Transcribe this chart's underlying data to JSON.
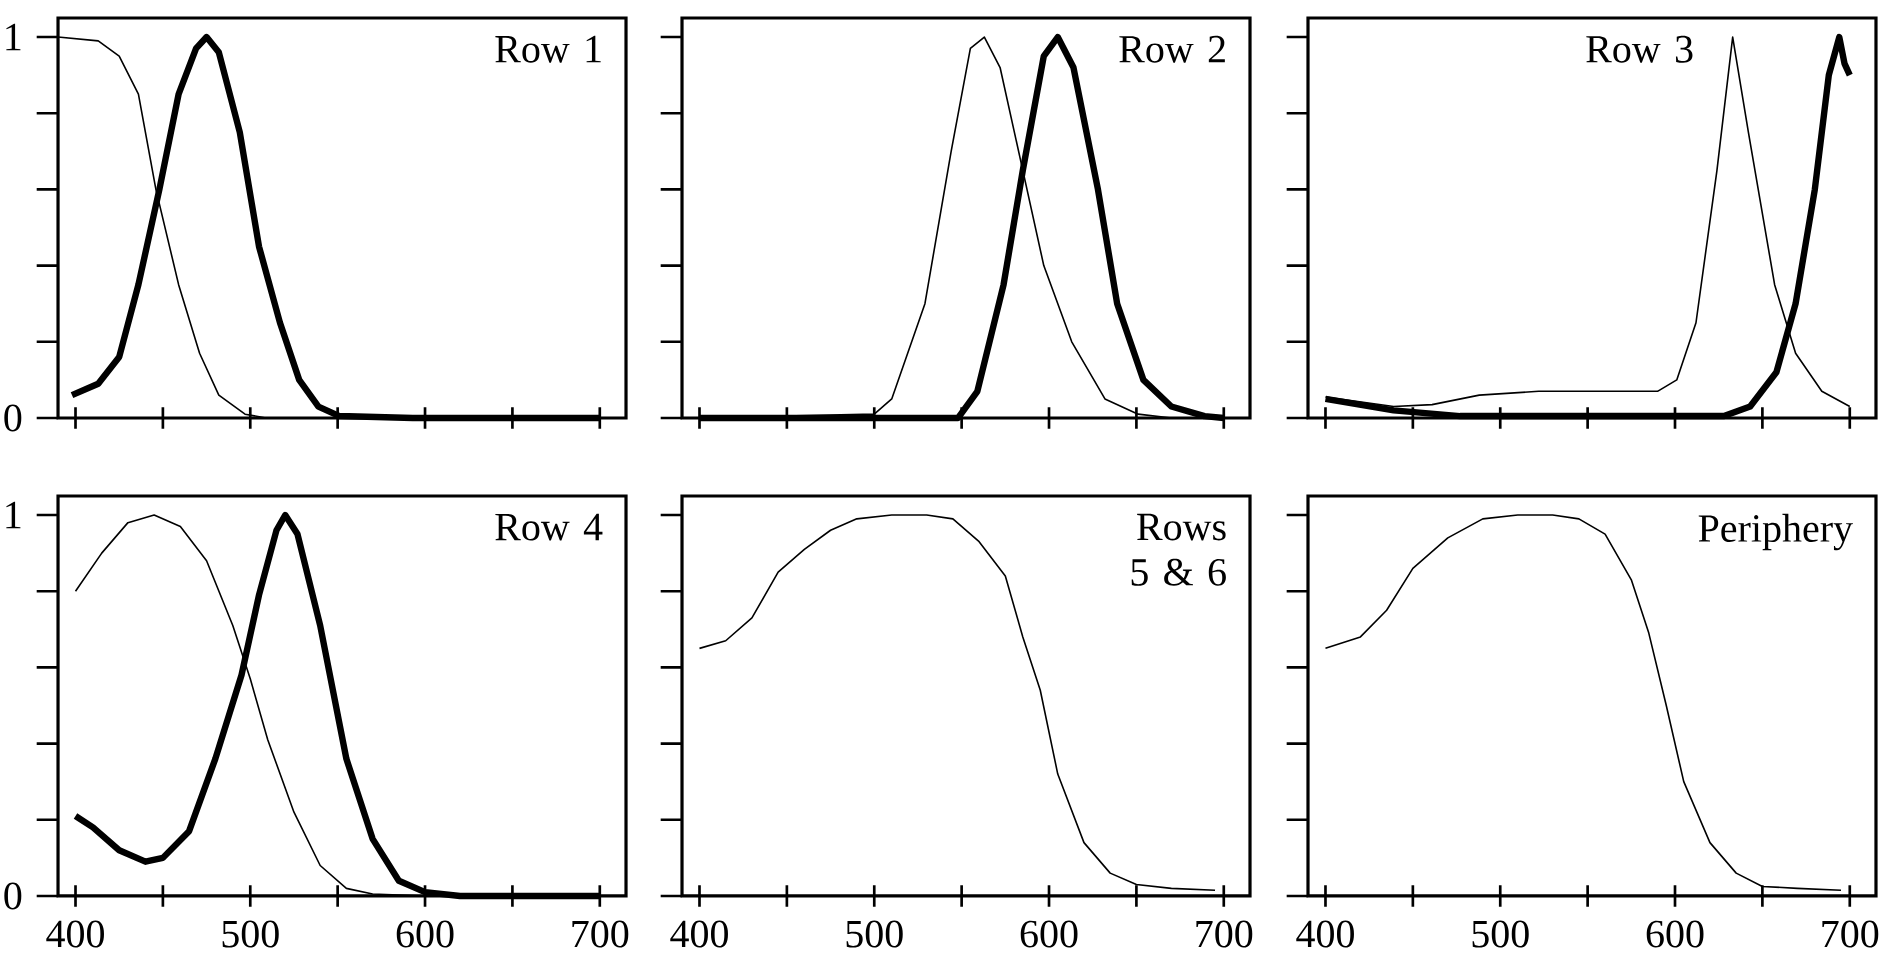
{
  "chart_data": [
    {
      "type": "line",
      "annotations": [
        "Row 1"
      ],
      "xlim": [
        390,
        715
      ],
      "ylim": [
        0,
        1.05
      ],
      "tick_labels": "y",
      "xticks": [
        {
          "value": 400,
          "label": null
        },
        {
          "value": 450,
          "label": null
        },
        {
          "value": 500,
          "label": null
        },
        {
          "value": 550,
          "label": null
        },
        {
          "value": 600,
          "label": null
        },
        {
          "value": 650,
          "label": null
        },
        {
          "value": 700,
          "label": null
        }
      ],
      "yticks": [
        0,
        {
          "value": 0.2,
          "label": null
        },
        {
          "value": 0.4,
          "label": null
        },
        {
          "value": 0.6,
          "label": null
        },
        {
          "value": 0.8,
          "label": null
        },
        1
      ],
      "series": [
        {
          "color": "#000000",
          "x": [
            390,
            413,
            425,
            436,
            446,
            459,
            471,
            482,
            497,
            509,
            600,
            700
          ],
          "values": [
            1.0,
            0.99,
            0.95,
            0.85,
            0.6,
            0.35,
            0.17,
            0.06,
            0.01,
            0,
            0,
            0
          ]
        },
        {
          "color": "#000000",
          "x": [
            398,
            413,
            425,
            436,
            448,
            459,
            469,
            475,
            482,
            494,
            505,
            517,
            528,
            539,
            551,
            593,
            700
          ],
          "values": [
            0.06,
            0.09,
            0.16,
            0.35,
            0.6,
            0.85,
            0.97,
            1.0,
            0.96,
            0.75,
            0.45,
            0.25,
            0.1,
            0.03,
            0.005,
            0,
            0
          ]
        }
      ]
    },
    {
      "type": "line",
      "annotations": [
        "Row 2"
      ],
      "xlim": [
        390,
        715
      ],
      "ylim": [
        0,
        1.05
      ],
      "tick_labels": false,
      "xticks": [
        {
          "value": 400,
          "label": null
        },
        {
          "value": 450,
          "label": null
        },
        {
          "value": 500,
          "label": null
        },
        {
          "value": 550,
          "label": null
        },
        {
          "value": 600,
          "label": null
        },
        {
          "value": 650,
          "label": null
        },
        {
          "value": 700,
          "label": null
        }
      ],
      "yticks": [
        {
          "value": 0,
          "label": null
        },
        {
          "value": 0.2,
          "label": null
        },
        {
          "value": 0.4,
          "label": null
        },
        {
          "value": 0.6,
          "label": null
        },
        {
          "value": 0.8,
          "label": null
        },
        {
          "value": 1,
          "label": null
        }
      ],
      "series": [
        {
          "color": "#000000",
          "x": [
            400,
            500,
            510,
            529,
            544,
            555,
            563,
            572,
            585,
            597,
            613,
            632,
            651,
            670,
            700
          ],
          "values": [
            0,
            0.01,
            0.05,
            0.3,
            0.7,
            0.97,
            1.0,
            0.92,
            0.65,
            0.4,
            0.2,
            0.05,
            0.01,
            0,
            0
          ]
        },
        {
          "color": "#000000",
          "x": [
            400,
            548,
            559,
            574,
            585,
            597,
            605,
            614,
            628,
            639,
            654,
            670,
            689,
            700
          ],
          "values": [
            0,
            0,
            0.07,
            0.35,
            0.65,
            0.95,
            1.0,
            0.92,
            0.6,
            0.3,
            0.1,
            0.03,
            0.005,
            0
          ]
        }
      ]
    },
    {
      "type": "line",
      "annotations": [
        "Row 3"
      ],
      "xlim": [
        390,
        715
      ],
      "ylim": [
        0,
        1.05
      ],
      "tick_labels": false,
      "xticks": [
        {
          "value": 400,
          "label": null
        },
        {
          "value": 450,
          "label": null
        },
        {
          "value": 500,
          "label": null
        },
        {
          "value": 550,
          "label": null
        },
        {
          "value": 600,
          "label": null
        },
        {
          "value": 650,
          "label": null
        },
        {
          "value": 700,
          "label": null
        }
      ],
      "yticks": [
        {
          "value": 0,
          "label": null
        },
        {
          "value": 0.2,
          "label": null
        },
        {
          "value": 0.4,
          "label": null
        },
        {
          "value": 0.6,
          "label": null
        },
        {
          "value": 0.8,
          "label": null
        },
        {
          "value": 1,
          "label": null
        }
      ],
      "series": [
        {
          "color": "#000000",
          "x": [
            400,
            439,
            461,
            488,
            522,
            590,
            601,
            612,
            624,
            633,
            642,
            657,
            669,
            684,
            700
          ],
          "values": [
            0.055,
            0.03,
            0.035,
            0.06,
            0.07,
            0.07,
            0.1,
            0.25,
            0.65,
            1.0,
            0.75,
            0.35,
            0.17,
            0.07,
            0.03
          ]
        },
        {
          "color": "#000000",
          "x": [
            400,
            439,
            477,
            628,
            643,
            658,
            669,
            680,
            688,
            694,
            697,
            700
          ],
          "values": [
            0.05,
            0.02,
            0.005,
            0.005,
            0.03,
            0.12,
            0.3,
            0.6,
            0.9,
            1.0,
            0.93,
            0.9
          ]
        }
      ]
    },
    {
      "type": "line",
      "annotations": [
        "Row 4"
      ],
      "xlim": [
        390,
        715
      ],
      "ylim": [
        0,
        1.05
      ],
      "xticks": [
        400,
        {
          "value": 450,
          "label": null
        },
        500,
        {
          "value": 550,
          "label": null
        },
        600,
        {
          "value": 650,
          "label": null
        },
        700
      ],
      "yticks": [
        0,
        {
          "value": 0.2,
          "label": null
        },
        {
          "value": 0.4,
          "label": null
        },
        {
          "value": 0.6,
          "label": null
        },
        {
          "value": 0.8,
          "label": null
        },
        1
      ],
      "series": [
        {
          "color": "#000000",
          "x": [
            400,
            415,
            430,
            445,
            460,
            475,
            490,
            500,
            510,
            525,
            540,
            555,
            570,
            600,
            700
          ],
          "values": [
            0.8,
            0.9,
            0.98,
            1.0,
            0.97,
            0.88,
            0.71,
            0.57,
            0.41,
            0.22,
            0.08,
            0.02,
            0.005,
            0,
            0
          ]
        },
        {
          "color": "#000000",
          "x": [
            400,
            410,
            425,
            440,
            450,
            465,
            480,
            495,
            505,
            515,
            520,
            527,
            540,
            555,
            570,
            585,
            600,
            620,
            700
          ],
          "values": [
            0.21,
            0.18,
            0.12,
            0.09,
            0.1,
            0.17,
            0.36,
            0.58,
            0.79,
            0.96,
            1.0,
            0.95,
            0.71,
            0.36,
            0.15,
            0.04,
            0.01,
            0,
            0
          ]
        }
      ]
    },
    {
      "type": "line",
      "annotations": [
        "Rows 5 & 6"
      ],
      "xlim": [
        390,
        715
      ],
      "ylim": [
        0,
        1.05
      ],
      "tick_labels": "x",
      "xticks": [
        400,
        {
          "value": 450,
          "label": null
        },
        500,
        {
          "value": 550,
          "label": null
        },
        600,
        {
          "value": 650,
          "label": null
        },
        700
      ],
      "yticks": [
        {
          "value": 0,
          "label": null
        },
        {
          "value": 0.2,
          "label": null
        },
        {
          "value": 0.4,
          "label": null
        },
        {
          "value": 0.6,
          "label": null
        },
        {
          "value": 0.8,
          "label": null
        },
        {
          "value": 1,
          "label": null
        }
      ],
      "series": [
        {
          "color": "#000000",
          "x": [
            400,
            415,
            430,
            445,
            460,
            475,
            490,
            510,
            530,
            545,
            560,
            575,
            585,
            595,
            605,
            620,
            635,
            650,
            670,
            695
          ],
          "values": [
            0.65,
            0.67,
            0.73,
            0.85,
            0.91,
            0.96,
            0.99,
            1.0,
            1.0,
            0.99,
            0.93,
            0.84,
            0.68,
            0.54,
            0.32,
            0.14,
            0.06,
            0.03,
            0.02,
            0.015
          ]
        }
      ]
    },
    {
      "type": "line",
      "annotations": [
        "Periphery"
      ],
      "xlim": [
        390,
        715
      ],
      "ylim": [
        0,
        1.05
      ],
      "tick_labels": "x",
      "xticks": [
        400,
        {
          "value": 450,
          "label": null
        },
        500,
        {
          "value": 550,
          "label": null
        },
        600,
        {
          "value": 650,
          "label": null
        },
        700
      ],
      "yticks": [
        {
          "value": 0,
          "label": null
        },
        {
          "value": 0.2,
          "label": null
        },
        {
          "value": 0.4,
          "label": null
        },
        {
          "value": 0.6,
          "label": null
        },
        {
          "value": 0.8,
          "label": null
        },
        {
          "value": 1,
          "label": null
        }
      ],
      "series": [
        {
          "color": "#000000",
          "x": [
            400,
            420,
            435,
            450,
            470,
            490,
            510,
            530,
            545,
            560,
            575,
            585,
            595,
            605,
            620,
            635,
            650,
            670,
            695
          ],
          "values": [
            0.65,
            0.68,
            0.75,
            0.86,
            0.94,
            0.99,
            1.0,
            1.0,
            0.99,
            0.95,
            0.83,
            0.69,
            0.5,
            0.3,
            0.14,
            0.06,
            0.025,
            0.02,
            0.015
          ]
        }
      ]
    }
  ]
}
